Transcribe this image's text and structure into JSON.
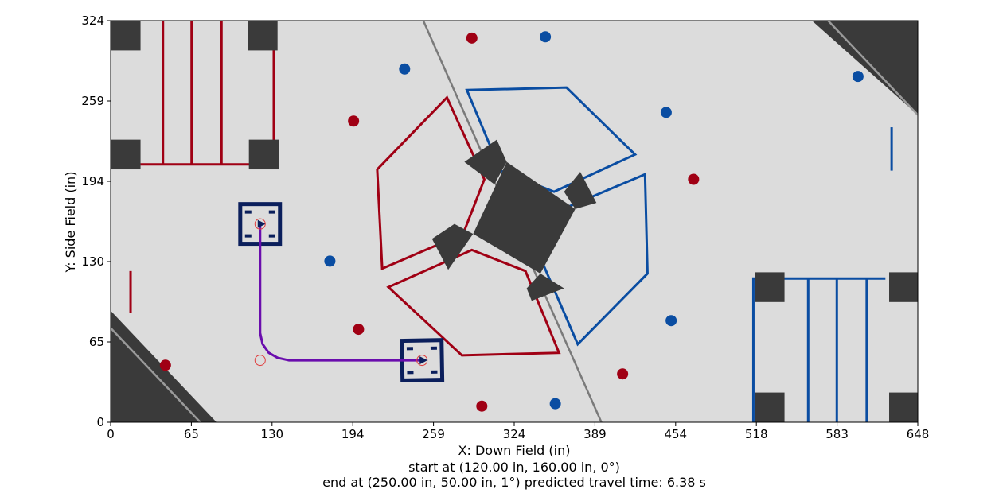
{
  "chart_data": {
    "type": "scatter",
    "title": "",
    "xlabel": "X: Down Field (in)",
    "ylabel": "Y: Side Field (in)",
    "xlim": [
      0,
      648
    ],
    "ylim": [
      0,
      324
    ],
    "xticks": [
      "0",
      "65",
      "130",
      "194",
      "259",
      "324",
      "389",
      "454",
      "518",
      "583",
      "648"
    ],
    "yticks": [
      "0",
      "65",
      "130",
      "194",
      "259",
      "324"
    ],
    "grid": false,
    "caption_lines": [
      "start at (120.00 in, 160.00 in, 0°)",
      "end at (250.00 in, 50.00 in, 1°) predicted travel time: 6.38 s"
    ],
    "start_pose": {
      "x": 120.0,
      "y": 160.0,
      "heading_deg": 0
    },
    "end_pose": {
      "x": 250.0,
      "y": 50.0,
      "heading_deg": 1
    },
    "predicted_travel_time_s": 6.38,
    "path": [
      [
        120,
        160
      ],
      [
        120,
        72
      ],
      [
        122,
        63
      ],
      [
        127,
        56
      ],
      [
        134,
        52
      ],
      [
        143,
        50
      ],
      [
        250,
        50
      ]
    ],
    "waypoint_markers": [
      {
        "x": 120,
        "y": 160
      },
      {
        "x": 120,
        "y": 50
      },
      {
        "x": 250,
        "y": 50
      }
    ],
    "robot_poses": [
      {
        "x": 120,
        "y": 160,
        "heading_deg": 0
      },
      {
        "x": 250,
        "y": 50,
        "heading_deg": 1
      }
    ],
    "red_balls": [
      {
        "x": 290,
        "y": 310
      },
      {
        "x": 195,
        "y": 243
      },
      {
        "x": 468,
        "y": 196
      },
      {
        "x": 199,
        "y": 75
      },
      {
        "x": 44,
        "y": 46
      },
      {
        "x": 411,
        "y": 39
      },
      {
        "x": 298,
        "y": 13
      }
    ],
    "blue_balls": [
      {
        "x": 349,
        "y": 311
      },
      {
        "x": 236,
        "y": 285
      },
      {
        "x": 600,
        "y": 279
      },
      {
        "x": 446,
        "y": 250
      },
      {
        "x": 176,
        "y": 130
      },
      {
        "x": 450,
        "y": 82
      },
      {
        "x": 357,
        "y": 15
      }
    ],
    "colors": {
      "field": "#dcdcdc",
      "red": "#a00014",
      "blue": "#0a4da2",
      "dark": "#3a3a3a",
      "path": "#6a0dad",
      "robot": "#0b1f5c",
      "marker": "#e03c3c"
    }
  }
}
